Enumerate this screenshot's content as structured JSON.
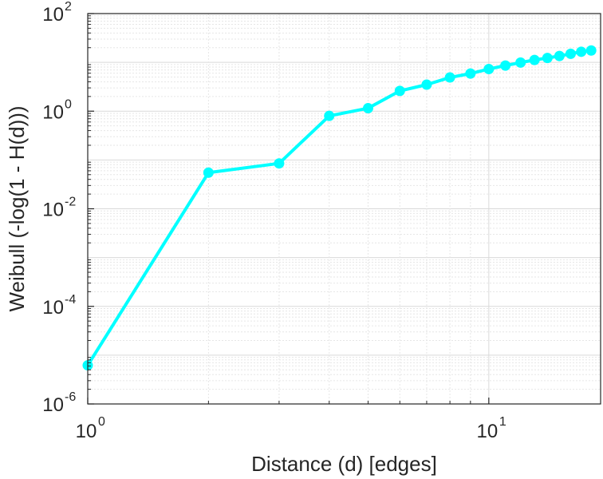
{
  "chart_data": {
    "type": "line",
    "xlabel": "Distance (d) [edges]",
    "ylabel": "Weibull (-log(1 - H(d)))",
    "xscale": "log",
    "yscale": "log",
    "xlim": [
      1,
      19
    ],
    "ylim": [
      1e-06,
      100
    ],
    "grid": true,
    "legend": "none",
    "color": "#00ffff",
    "x_ticks": [
      {
        "value": 1,
        "base": "10",
        "exp": "0"
      },
      {
        "value": 10,
        "base": "10",
        "exp": "1"
      }
    ],
    "y_ticks": [
      {
        "value": 1e-06,
        "base": "10",
        "exp": "-6"
      },
      {
        "value": 0.0001,
        "base": "10",
        "exp": "-4"
      },
      {
        "value": 0.01,
        "base": "10",
        "exp": "-2"
      },
      {
        "value": 1,
        "base": "10",
        "exp": "0"
      },
      {
        "value": 100,
        "base": "10",
        "exp": "2"
      }
    ],
    "series": [
      {
        "x": [
          1,
          2,
          3,
          4,
          5,
          6,
          7,
          8,
          9,
          10,
          11,
          12,
          13,
          14,
          15,
          16,
          17,
          18
        ],
        "y": [
          6.2e-06,
          0.055,
          0.085,
          0.8,
          1.15,
          2.6,
          3.5,
          4.9,
          5.9,
          7.3,
          8.6,
          9.9,
          11.2,
          12.3,
          13.5,
          15.0,
          16.5,
          17.5
        ]
      }
    ]
  }
}
